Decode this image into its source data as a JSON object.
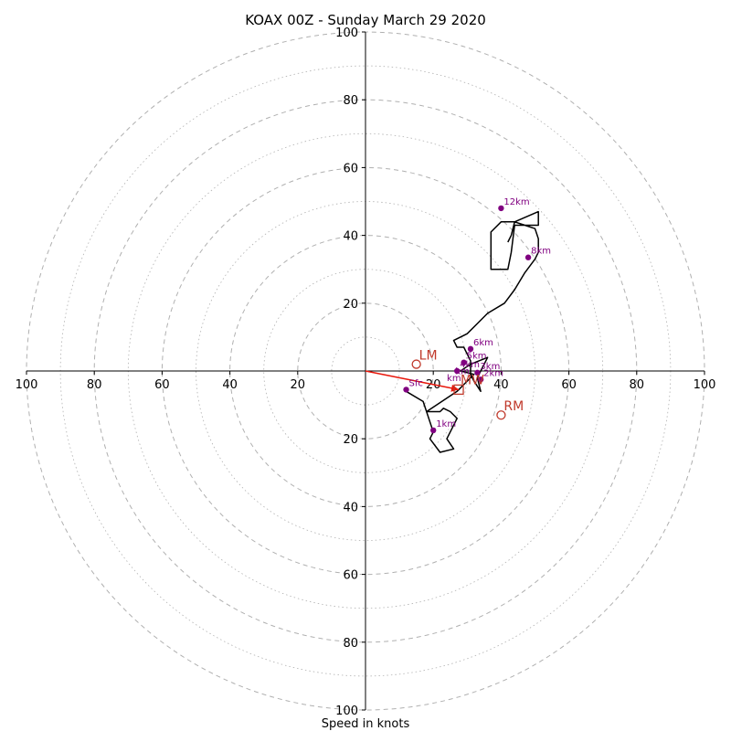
{
  "chart_data": {
    "type": "scatter",
    "subtype": "hodograph",
    "title": "KOAX 00Z - Sunday March 29 2020",
    "xlabel": "Speed in knots",
    "ylabel": "",
    "xlim": [
      -100,
      100
    ],
    "ylim": [
      -100,
      100
    ],
    "range_rings_dashed": [
      20,
      40,
      60,
      80,
      100
    ],
    "range_rings_dotted": [
      10,
      30,
      50,
      70,
      90
    ],
    "x_tick_labels": [
      "100",
      "80",
      "60",
      "40",
      "20",
      "20",
      "40",
      "60",
      "80",
      "100"
    ],
    "y_tick_labels": [
      "100",
      "80",
      "60",
      "40",
      "20",
      "20",
      "40",
      "60",
      "80",
      "100"
    ],
    "grid": true,
    "colors": {
      "trace": "#000000",
      "height_marker": "#800080",
      "motion": "#c0392b",
      "ring": "#b0b0b0",
      "axis": "#000000"
    },
    "series": [
      {
        "x": [
          12,
          17,
          20,
          19,
          22,
          26,
          24,
          27,
          25,
          23,
          22,
          18,
          27,
          30,
          32,
          28,
          31,
          36,
          33,
          34,
          32,
          31,
          31,
          30,
          29,
          27,
          26,
          30,
          33,
          36,
          41,
          44,
          47,
          50,
          51,
          51,
          50,
          47,
          44,
          40,
          37,
          37,
          42,
          43,
          44,
          51,
          51,
          44,
          43,
          42,
          42
        ],
        "y": [
          -6,
          -9,
          -18,
          -20,
          -24,
          -23,
          -20,
          -14,
          -12,
          -11,
          -12,
          -12,
          -6,
          -3,
          -1,
          0,
          2,
          4,
          -2,
          -6,
          -3,
          -1,
          3,
          5,
          7,
          7,
          9,
          11,
          14,
          17,
          20,
          24,
          29,
          33,
          35,
          39,
          42,
          43,
          44,
          44,
          41,
          30,
          30,
          35,
          43,
          43,
          47,
          44,
          40,
          38,
          38
        ]
      }
    ],
    "height_markers": [
      {
        "label": "Sfc",
        "x": 12,
        "y": -5.5
      },
      {
        "label": "1km",
        "x": 20,
        "y": -17.5
      },
      {
        "label": "2km",
        "x": 34,
        "y": -2.5
      },
      {
        "label": "3km",
        "x": 33,
        "y": -0.5
      },
      {
        "label": "4km",
        "x": 27,
        "y": 0
      },
      {
        "label": "5km",
        "x": 29,
        "y": 2.5
      },
      {
        "label": "6km",
        "x": 31,
        "y": 6.5
      },
      {
        "label": "8km",
        "x": 48,
        "y": 33.5
      },
      {
        "label": "12km",
        "x": 40,
        "y": 48
      }
    ],
    "extra_labels": [
      {
        "text": "km",
        "x": 24,
        "y": -3
      },
      {
        "text": "km",
        "x": 26.5,
        "y": -1
      }
    ],
    "storm_motion": [
      {
        "label": "LM",
        "x": 15,
        "y": 2
      },
      {
        "label": "RM",
        "x": 40,
        "y": -13
      }
    ],
    "mean_wind": {
      "label": "MW",
      "x": 27.5,
      "y": -5.5
    },
    "shear_vector": {
      "x0": 0,
      "y0": 0,
      "x1": 27.5,
      "y1": -5.5
    }
  }
}
